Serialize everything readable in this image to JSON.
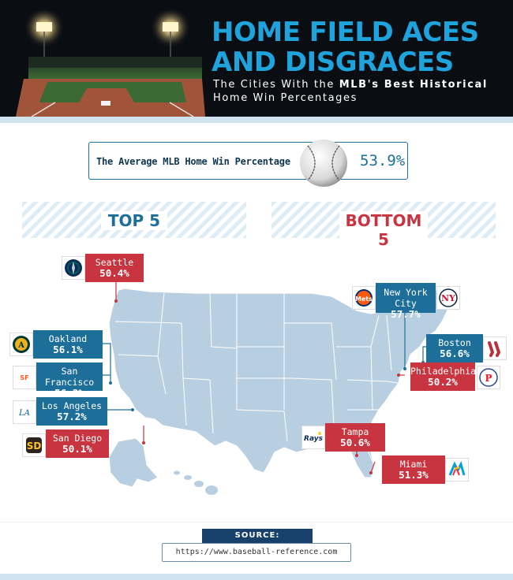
{
  "header": {
    "title_line1": "HOME FIELD ACES",
    "title_line2": "AND DISGRACES",
    "subtitle_line1_pre": "The Cities With the ",
    "subtitle_line1_bold": "MLB's Best Historical",
    "subtitle_line2": "Home Win Percentages"
  },
  "average": {
    "label": "The Average MLB Home Win Percentage",
    "value": "53.9%"
  },
  "sections": {
    "top_label": "TOP 5",
    "bottom_label": "BOTTOM 5"
  },
  "colors": {
    "top_blue": "#1d6f9a",
    "bottom_red": "#c8343f",
    "map_fill": "#b7cfe0",
    "header_bg": "#0a0d12",
    "title_blue": "#1ea3dc"
  },
  "cities": {
    "seattle": {
      "name": "Seattle",
      "pct": "50.4%",
      "group": "bottom",
      "logo": "mariners-logo-icon"
    },
    "oakland": {
      "name": "Oakland",
      "pct": "56.1%",
      "group": "top",
      "logo": "athletics-logo-icon"
    },
    "san_francisco": {
      "name": "San Francisco",
      "pct": "56.3%",
      "group": "top",
      "logo": "giants-logo-icon"
    },
    "los_angeles": {
      "name": "Los Angeles",
      "pct": "57.2%",
      "group": "top",
      "logo": "dodgers-logo-icon"
    },
    "san_diego": {
      "name": "San Diego",
      "pct": "50.1%",
      "group": "bottom",
      "logo": "padres-logo-icon"
    },
    "new_york": {
      "name": "New York City",
      "pct": "57.7%",
      "group": "top",
      "logo": "mets-yankees-logo-icon"
    },
    "boston": {
      "name": "Boston",
      "pct": "56.6%",
      "group": "top",
      "logo": "red-sox-logo-icon"
    },
    "philadelphia": {
      "name": "Philadelphia",
      "pct": "50.2%",
      "group": "bottom",
      "logo": "phillies-logo-icon"
    },
    "tampa": {
      "name": "Tampa",
      "pct": "50.6%",
      "group": "bottom",
      "logo": "rays-logo-icon"
    },
    "miami": {
      "name": "Miami",
      "pct": "51.3%",
      "group": "bottom",
      "logo": "marlins-logo-icon"
    }
  },
  "source": {
    "label": "SOURCE:",
    "url": "https://www.baseball-reference.com"
  }
}
